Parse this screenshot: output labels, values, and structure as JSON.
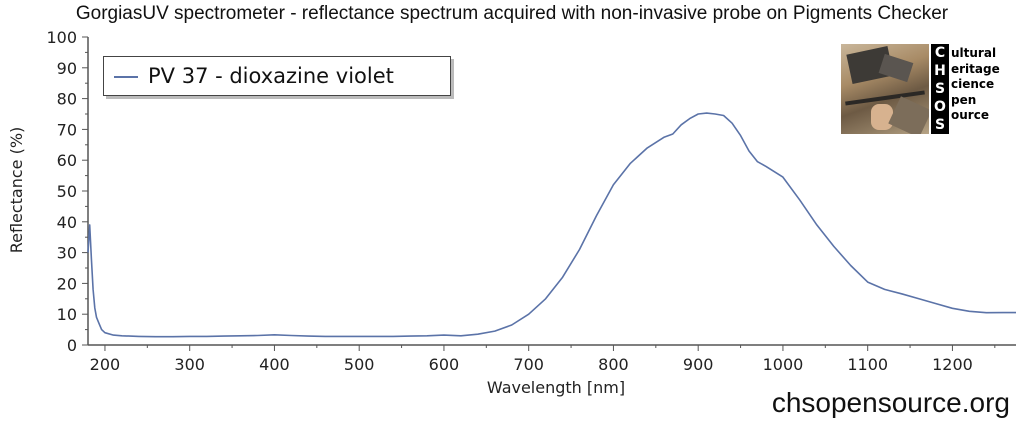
{
  "title": "GorgiasUV spectrometer - reflectance spectrum acquired with non-invasive probe on Pigments Checker",
  "watermark": "chsopensource.org",
  "logo": {
    "letters": [
      "C",
      "H",
      "S",
      "O",
      "S"
    ],
    "words": [
      "ultural",
      "eritage",
      "cience",
      "pen",
      "ource"
    ]
  },
  "colors": {
    "series": "#5b73a8",
    "axis": "#555555",
    "grid": "#dddddd"
  },
  "chart_data": {
    "type": "line",
    "title": "GorgiasUV spectrometer - reflectance spectrum acquired with non-invasive probe on Pigments Checker",
    "xlabel": "Wavelength [nm]",
    "ylabel": "Reflectance (%)",
    "xlim": [
      180,
      1275
    ],
    "ylim": [
      0,
      100
    ],
    "xticks": [
      200,
      300,
      400,
      500,
      600,
      700,
      800,
      900,
      1000,
      1100,
      1200
    ],
    "yticks": [
      0,
      10,
      20,
      30,
      40,
      50,
      60,
      70,
      80,
      90,
      100
    ],
    "legend_position": "top-left",
    "grid": false,
    "series": [
      {
        "name": "PV 37 - dioxazine violet",
        "x": [
          180,
          182,
          184,
          186,
          188,
          190,
          193,
          196,
          200,
          210,
          220,
          240,
          260,
          280,
          300,
          320,
          340,
          360,
          380,
          400,
          420,
          440,
          460,
          480,
          500,
          520,
          540,
          560,
          580,
          600,
          620,
          640,
          660,
          680,
          700,
          720,
          740,
          760,
          780,
          800,
          820,
          840,
          860,
          870,
          880,
          890,
          900,
          910,
          920,
          930,
          940,
          950,
          960,
          970,
          980,
          1000,
          1020,
          1040,
          1060,
          1080,
          1100,
          1120,
          1140,
          1160,
          1180,
          1200,
          1220,
          1240,
          1260,
          1275
        ],
        "y": [
          30,
          39,
          28,
          18,
          12,
          9,
          7,
          5,
          4,
          3.2,
          3,
          2.8,
          2.7,
          2.7,
          2.8,
          2.8,
          2.9,
          3,
          3.1,
          3.3,
          3.1,
          2.9,
          2.8,
          2.8,
          2.8,
          2.8,
          2.8,
          2.9,
          3,
          3.2,
          3,
          3.5,
          4.5,
          6.5,
          10,
          15,
          22,
          31,
          42,
          52,
          59,
          64,
          67.5,
          68.5,
          71.5,
          73.5,
          75,
          75.3,
          75,
          74.5,
          72,
          68,
          63,
          59.5,
          58,
          54.5,
          47,
          39,
          32,
          26,
          21,
          18.5,
          16.5,
          14.5,
          13,
          12,
          11.5,
          11,
          10.5,
          10
        ]
      }
    ]
  }
}
